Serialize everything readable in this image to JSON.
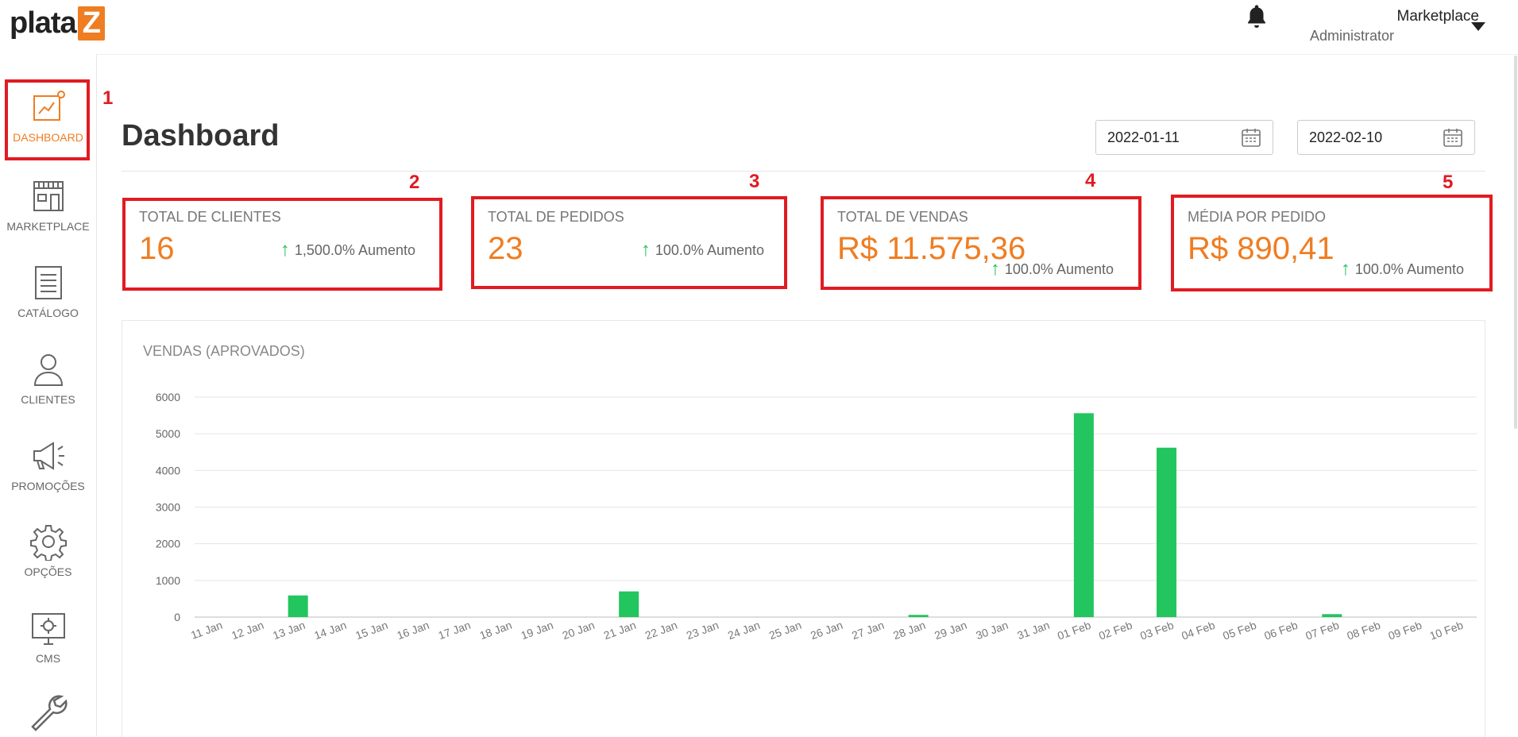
{
  "header": {
    "logo_text": "plata",
    "logo_mark": "Z",
    "user_name": "Marketplace",
    "user_role": "Administrator",
    "bell_icon": "bell-icon"
  },
  "sidebar": {
    "items": [
      {
        "label": "DASHBOARD",
        "icon": "chart-icon",
        "active": true
      },
      {
        "label": "MARKETPLACE",
        "icon": "store-icon",
        "active": false
      },
      {
        "label": "CATÁLOGO",
        "icon": "document-icon",
        "active": false
      },
      {
        "label": "CLIENTES",
        "icon": "user-icon",
        "active": false
      },
      {
        "label": "PROMOÇÕES",
        "icon": "megaphone-icon",
        "active": false
      },
      {
        "label": "OPÇÕES",
        "icon": "gear-icon",
        "active": false
      },
      {
        "label": "CMS",
        "icon": "monitor-gear-icon",
        "active": false
      },
      {
        "label": "",
        "icon": "wrench-icon",
        "active": false
      }
    ]
  },
  "annotations": [
    "1",
    "2",
    "3",
    "4",
    "5"
  ],
  "main": {
    "title": "Dashboard",
    "date_from": "2022-01-11",
    "date_to": "2022-02-10",
    "stats": [
      {
        "title": "TOTAL DE CLIENTES",
        "value": "16",
        "delta": "1,500.0% Aumento"
      },
      {
        "title": "TOTAL DE PEDIDOS",
        "value": "23",
        "delta": "100.0% Aumento"
      },
      {
        "title": "TOTAL DE VENDAS",
        "value": "R$ 11.575,36",
        "delta": "100.0% Aumento"
      },
      {
        "title": "MÉDIA POR PEDIDO",
        "value": "R$ 890,41",
        "delta": "100.0% Aumento"
      }
    ],
    "chart_title": "VENDAS (APROVADOS)"
  },
  "colors": {
    "accent": "#ef7d22",
    "bar": "#22c55e",
    "annotation": "#e11b22"
  },
  "chart_data": {
    "type": "bar",
    "title": "VENDAS (APROVADOS)",
    "categories": [
      "11 Jan",
      "12 Jan",
      "13 Jan",
      "14 Jan",
      "15 Jan",
      "16 Jan",
      "17 Jan",
      "18 Jan",
      "19 Jan",
      "20 Jan",
      "21 Jan",
      "22 Jan",
      "23 Jan",
      "24 Jan",
      "25 Jan",
      "26 Jan",
      "27 Jan",
      "28 Jan",
      "29 Jan",
      "30 Jan",
      "31 Jan",
      "01 Feb",
      "02 Feb",
      "03 Feb",
      "04 Feb",
      "05 Feb",
      "06 Feb",
      "07 Feb",
      "08 Feb",
      "09 Feb",
      "10 Feb"
    ],
    "values": [
      0,
      0,
      590,
      0,
      0,
      0,
      0,
      0,
      0,
      0,
      700,
      0,
      0,
      0,
      0,
      0,
      0,
      60,
      0,
      0,
      0,
      5560,
      0,
      4620,
      0,
      0,
      0,
      80,
      0,
      0,
      0
    ],
    "yticks": [
      "0",
      "1000",
      "2000",
      "3000",
      "4000",
      "5000",
      "6000"
    ],
    "ylim": [
      0,
      6000
    ],
    "grid": true
  }
}
